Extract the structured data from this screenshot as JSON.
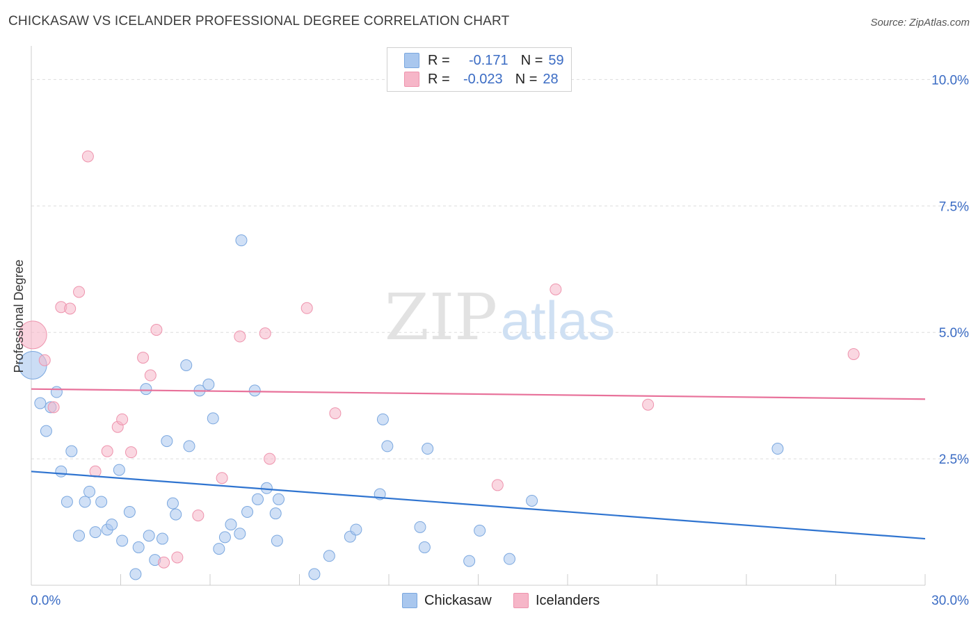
{
  "header": {
    "title": "CHICKASAW VS ICELANDER PROFESSIONAL DEGREE CORRELATION CHART",
    "source": "Source: ZipAtlas.com"
  },
  "watermark": {
    "zip": "ZIP",
    "atlas": "atlas"
  },
  "legend": {
    "rows": [
      {
        "r_label": "R =",
        "r_value": "-0.171",
        "n_label": "N =",
        "n_value": "59",
        "color": "#a9c7ee"
      },
      {
        "r_label": "R =",
        "r_value": "-0.023",
        "n_label": "N =",
        "n_value": "28",
        "color": "#f6b6c8"
      }
    ]
  },
  "bottom_legend": [
    {
      "label": "Chickasaw",
      "color": "#a9c7ee"
    },
    {
      "label": "Icelanders",
      "color": "#f6b6c8"
    }
  ],
  "colors": {
    "blue_fill": "#a9c7ee",
    "blue_stroke": "#7aa7df",
    "blue_line": "#2f74d0",
    "pink_fill": "#f6b6c8",
    "pink_stroke": "#ee93ad",
    "pink_line": "#e8719a",
    "axis_label": "#3b6cc4",
    "grid": "#dddddd"
  },
  "chart_data": {
    "type": "scatter",
    "title": "CHICKASAW VS ICELANDER PROFESSIONAL DEGREE CORRELATION CHART",
    "xlabel": "",
    "ylabel": "Professional Degree",
    "xlim": [
      0,
      30
    ],
    "ylim": [
      0,
      10.5
    ],
    "x_tick_labels": [
      {
        "value": 0,
        "label": "0.0%"
      },
      {
        "value": 30,
        "label": "30.0%"
      }
    ],
    "y_tick_labels": [
      {
        "value": 2.5,
        "label": "2.5%"
      },
      {
        "value": 5.0,
        "label": "5.0%"
      },
      {
        "value": 7.5,
        "label": "7.5%"
      },
      {
        "value": 10.0,
        "label": "10.0%"
      }
    ],
    "x_minor_ticks": [
      3,
      6,
      9,
      12,
      15,
      18,
      21,
      24,
      27,
      30
    ],
    "series": [
      {
        "name": "Chickasaw",
        "r": -0.171,
        "n": 59,
        "trend": {
          "x": [
            0,
            30
          ],
          "y": [
            2.25,
            0.92
          ]
        },
        "points": [
          {
            "x": 0.05,
            "y": 4.35,
            "big": true
          },
          {
            "x": 0.3,
            "y": 3.6
          },
          {
            "x": 0.5,
            "y": 3.05
          },
          {
            "x": 0.65,
            "y": 3.52
          },
          {
            "x": 0.85,
            "y": 3.82
          },
          {
            "x": 1.0,
            "y": 2.25
          },
          {
            "x": 1.2,
            "y": 1.65
          },
          {
            "x": 1.35,
            "y": 2.65
          },
          {
            "x": 1.6,
            "y": 0.98
          },
          {
            "x": 1.8,
            "y": 1.65
          },
          {
            "x": 1.95,
            "y": 1.85
          },
          {
            "x": 2.15,
            "y": 1.05
          },
          {
            "x": 2.35,
            "y": 1.65
          },
          {
            "x": 2.55,
            "y": 1.1
          },
          {
            "x": 2.7,
            "y": 1.2
          },
          {
            "x": 2.95,
            "y": 2.28
          },
          {
            "x": 3.05,
            "y": 0.88
          },
          {
            "x": 3.3,
            "y": 1.45
          },
          {
            "x": 3.5,
            "y": 0.22
          },
          {
            "x": 3.6,
            "y": 0.75
          },
          {
            "x": 3.85,
            "y": 3.88
          },
          {
            "x": 3.95,
            "y": 0.98
          },
          {
            "x": 4.15,
            "y": 0.5
          },
          {
            "x": 4.4,
            "y": 0.92
          },
          {
            "x": 4.55,
            "y": 2.85
          },
          {
            "x": 4.75,
            "y": 1.62
          },
          {
            "x": 4.85,
            "y": 1.4
          },
          {
            "x": 5.2,
            "y": 4.35
          },
          {
            "x": 5.3,
            "y": 2.75
          },
          {
            "x": 5.65,
            "y": 3.85
          },
          {
            "x": 5.95,
            "y": 3.97
          },
          {
            "x": 6.1,
            "y": 3.3
          },
          {
            "x": 6.3,
            "y": 0.72
          },
          {
            "x": 6.5,
            "y": 0.95
          },
          {
            "x": 6.7,
            "y": 1.2
          },
          {
            "x": 7.0,
            "y": 1.02
          },
          {
            "x": 7.05,
            "y": 6.82
          },
          {
            "x": 7.25,
            "y": 1.45
          },
          {
            "x": 7.5,
            "y": 3.85
          },
          {
            "x": 7.6,
            "y": 1.7
          },
          {
            "x": 7.9,
            "y": 1.92
          },
          {
            "x": 8.25,
            "y": 0.88
          },
          {
            "x": 8.2,
            "y": 1.42
          },
          {
            "x": 8.3,
            "y": 1.7
          },
          {
            "x": 9.5,
            "y": 0.22
          },
          {
            "x": 10.0,
            "y": 0.58
          },
          {
            "x": 10.7,
            "y": 0.96
          },
          {
            "x": 10.9,
            "y": 1.1
          },
          {
            "x": 11.7,
            "y": 1.8
          },
          {
            "x": 11.8,
            "y": 3.28
          },
          {
            "x": 11.95,
            "y": 2.75
          },
          {
            "x": 13.05,
            "y": 1.15
          },
          {
            "x": 13.2,
            "y": 0.75
          },
          {
            "x": 13.3,
            "y": 2.7
          },
          {
            "x": 14.7,
            "y": 0.48
          },
          {
            "x": 15.05,
            "y": 1.08
          },
          {
            "x": 16.05,
            "y": 0.52
          },
          {
            "x": 16.8,
            "y": 1.67
          },
          {
            "x": 25.05,
            "y": 2.7
          }
        ]
      },
      {
        "name": "Icelanders",
        "r": -0.023,
        "n": 28,
        "trend": {
          "x": [
            0,
            30
          ],
          "y": [
            3.88,
            3.68
          ]
        },
        "points": [
          {
            "x": 0.05,
            "y": 4.95,
            "big": true
          },
          {
            "x": 0.45,
            "y": 4.45
          },
          {
            "x": 0.75,
            "y": 3.52
          },
          {
            "x": 1.0,
            "y": 5.5
          },
          {
            "x": 1.3,
            "y": 5.47
          },
          {
            "x": 1.6,
            "y": 5.8
          },
          {
            "x": 1.9,
            "y": 8.48
          },
          {
            "x": 2.15,
            "y": 2.25
          },
          {
            "x": 2.55,
            "y": 2.65
          },
          {
            "x": 2.9,
            "y": 3.13
          },
          {
            "x": 3.05,
            "y": 3.28
          },
          {
            "x": 3.35,
            "y": 2.63
          },
          {
            "x": 3.75,
            "y": 4.5
          },
          {
            "x": 4.0,
            "y": 4.15
          },
          {
            "x": 4.2,
            "y": 5.05
          },
          {
            "x": 4.45,
            "y": 0.45
          },
          {
            "x": 4.9,
            "y": 0.55
          },
          {
            "x": 5.6,
            "y": 1.38
          },
          {
            "x": 6.4,
            "y": 2.12
          },
          {
            "x": 7.0,
            "y": 4.92
          },
          {
            "x": 7.85,
            "y": 4.98
          },
          {
            "x": 8.0,
            "y": 2.5
          },
          {
            "x": 9.25,
            "y": 5.48
          },
          {
            "x": 10.2,
            "y": 3.4
          },
          {
            "x": 15.65,
            "y": 1.98
          },
          {
            "x": 17.6,
            "y": 5.85
          },
          {
            "x": 20.7,
            "y": 3.57
          },
          {
            "x": 27.6,
            "y": 4.57
          }
        ]
      }
    ]
  }
}
